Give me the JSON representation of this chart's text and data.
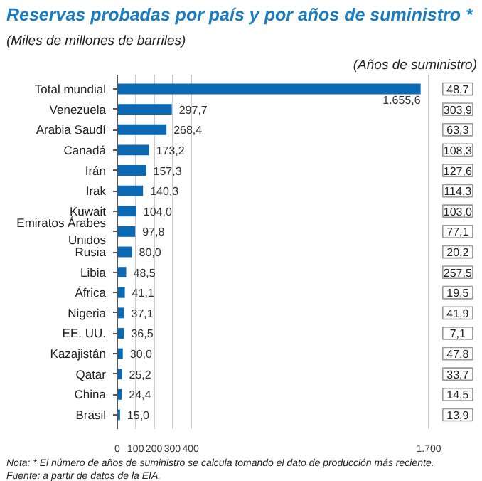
{
  "chart_data": [
    {
      "type": "bar",
      "orientation": "horizontal",
      "title": "Reservas probadas por país y por años de suministro *",
      "subtitle": "(Miles de millones de barriles)",
      "categories": [
        "Total mundial",
        "Venezuela",
        "Arabia Saudí",
        "Canadá",
        "Irán",
        "Irak",
        "Kuwait",
        "Emiratos Árabes Unidos",
        "Rusia",
        "Libia",
        "África",
        "Nigeria",
        "EE. UU.",
        "Kazajistán",
        "Qatar",
        "China",
        "Brasil"
      ],
      "values": [
        1655.6,
        297.7,
        268.4,
        173.2,
        157.3,
        140.3,
        104.0,
        97.8,
        80.0,
        48.5,
        41.1,
        37.1,
        36.5,
        30.0,
        25.2,
        24.4,
        15.0
      ],
      "value_labels": [
        "1.655,6",
        "297,7",
        "268,4",
        "173,2",
        "157,3",
        "140,3",
        "104,0",
        "97,8",
        "80,0",
        "48,5",
        "41,1",
        "37,1",
        "36,5",
        "30,0",
        "25,2",
        "24,4",
        "15,0"
      ],
      "color": "#0b69b4",
      "xlim": [
        0,
        1700
      ],
      "xticks": [
        0,
        100,
        200,
        300,
        400,
        {
          "value": 1700,
          "label": "1.700"
        }
      ],
      "grid": "x",
      "annotations": [
        "Nota: * El número de años de suministro se calcula tomando el dato de producción más reciente.",
        "Fuente: a partir de datos de la EIA."
      ]
    },
    {
      "type": "other",
      "title": "(Años de suministro)",
      "values": [
        48.7,
        303.9,
        63.3,
        108.3,
        127.6,
        114.3,
        103.0,
        77.1,
        20.2,
        257.5,
        19.5,
        41.9,
        7.1,
        47.8,
        33.7,
        14.5,
        13.9
      ],
      "value_labels": [
        "48,7",
        "303,9",
        "63,3",
        "108,3",
        "127,6",
        "114,3",
        "103,0",
        "77,1",
        "20,2",
        "257,5",
        "19,5",
        "41,9",
        "7,1",
        "47,8",
        "33,7",
        "14,5",
        "13,9"
      ]
    }
  ]
}
